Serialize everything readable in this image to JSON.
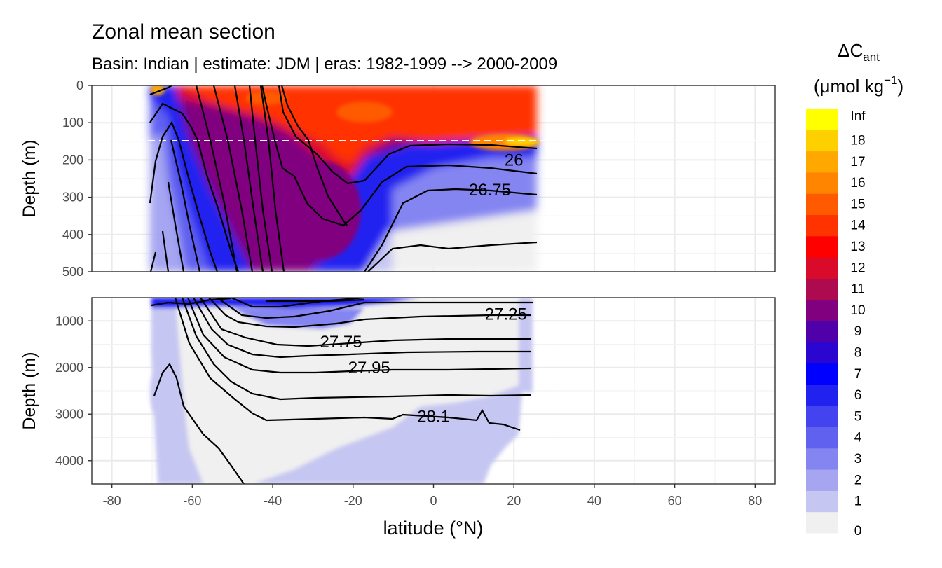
{
  "chart_data": {
    "type": "heatmap",
    "title": "Zonal mean section",
    "subtitle": "Basin: Indian | estimate: JDM  | eras: 1982-1999 --> 2000-2009",
    "xlabel": "latitude (°N)",
    "ylabel": "Depth (m)",
    "xlim": [
      -85,
      85
    ],
    "x_ticks": [
      -80,
      -60,
      -40,
      -20,
      0,
      20,
      40,
      60,
      80
    ],
    "x_tick_labels": [
      "-80",
      "-60",
      "-40",
      "-20",
      "0",
      "20",
      "40",
      "60",
      "80"
    ],
    "grid": true,
    "data_lat_range": [
      -70,
      25.5
    ],
    "panels": [
      {
        "name": "upper",
        "ylim": [
          0,
          500
        ],
        "y_ticks": [
          0,
          100,
          200,
          300,
          400,
          500
        ],
        "y_tick_labels": [
          "0",
          "100",
          "200",
          "300",
          "400",
          "500"
        ],
        "mixed_layer_depth": 150
      },
      {
        "name": "lower",
        "ylim": [
          500,
          4500
        ],
        "y_ticks": [
          1000,
          2000,
          3000,
          4000
        ],
        "y_tick_labels": [
          "1000",
          "2000",
          "3000",
          "4000"
        ]
      }
    ],
    "legend": {
      "title_main": "ΔC",
      "title_sub": "ant",
      "title_unit": "(μmol kg",
      "title_exp": "−1",
      "title_close": ")",
      "placement": "right",
      "labels": [
        "0",
        "1",
        "2",
        "3",
        "4",
        "5",
        "6",
        "7",
        "8",
        "9",
        "10",
        "11",
        "12",
        "13",
        "14",
        "15",
        "16",
        "17",
        "18",
        "Inf"
      ],
      "colors": [
        "#f0f0f0",
        "#c6c6f2",
        "#a5a5f2",
        "#8585f2",
        "#6161f0",
        "#4343f0",
        "#2222f0",
        "#0000ff",
        "#2b06d0",
        "#5000a8",
        "#800080",
        "#ad0a50",
        "#da0a2a",
        "#ff0000",
        "#ff3300",
        "#ff5a00",
        "#ff8500",
        "#ffa800",
        "#ffd000",
        "#ffff00"
      ]
    },
    "isopycnal_labels": [
      {
        "label": "26",
        "lat": 20,
        "depth": 200
      },
      {
        "label": "26.75",
        "lat": 14,
        "depth": 280
      },
      {
        "label": "27.25",
        "lat": 18,
        "depth": 850
      },
      {
        "label": "27.75",
        "lat": -23,
        "depth": 1450
      },
      {
        "label": "27.95",
        "lat": -16,
        "depth": 2000
      },
      {
        "label": "28.1",
        "lat": 0,
        "depth": 3050
      }
    ]
  }
}
